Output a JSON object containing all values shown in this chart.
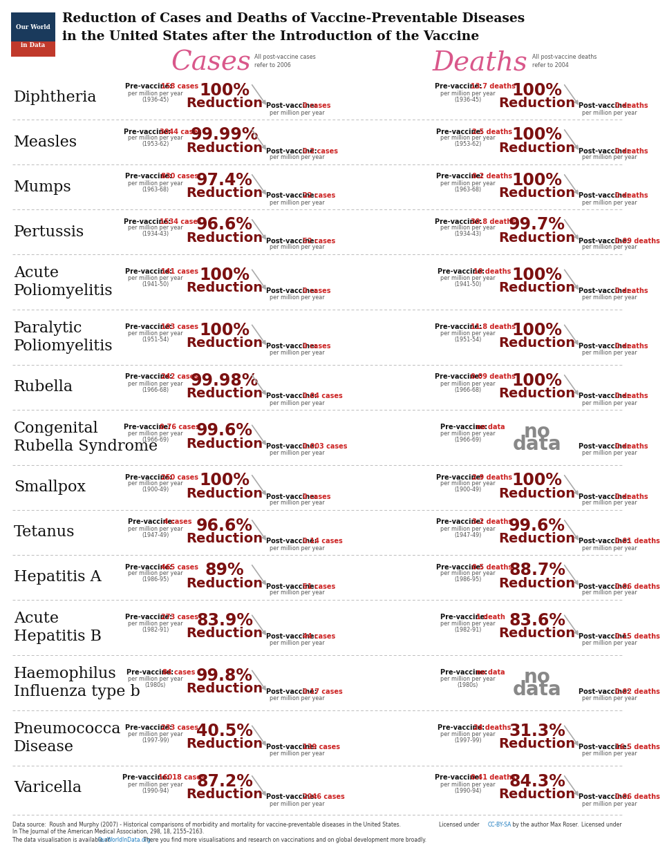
{
  "title_line1": "Reduction of Cases and Deaths of Vaccine-Preventable Diseases",
  "title_line2": "in the United States after the Introduction of the Vaccine",
  "cases_header": "Cases",
  "deaths_header": "Deaths",
  "cases_note": "All post-vaccine cases\nrefer to 2006",
  "deaths_note": "All post-vaccine deaths\nrefer to 2004",
  "logo_text1": "Our World",
  "logo_text2": "in Data",
  "diseases": [
    {
      "name": "Diphtheria",
      "name_lines": 1,
      "cases_pre_val": "158 cases",
      "cases_pre_period": "(1936-45)",
      "cases_reduction": "100%",
      "cases_post_val": "0 cases",
      "deaths_pre_val": "13.7 deaths",
      "deaths_pre_period": "(1936-45)",
      "deaths_reduction": "100%",
      "deaths_post_val": "0 deaths"
    },
    {
      "name": "Measles",
      "name_lines": 1,
      "cases_pre_val": "3044 cases",
      "cases_pre_period": "(1953-62)",
      "cases_reduction": "99.99%",
      "cases_post_val": "0.2 cases",
      "deaths_pre_val": "2.5 deaths",
      "deaths_pre_period": "(1953-62)",
      "deaths_reduction": "100%",
      "deaths_post_val": "0 deaths"
    },
    {
      "name": "Mumps",
      "name_lines": 1,
      "cases_pre_val": "830 cases",
      "cases_pre_period": "(1963-68)",
      "cases_reduction": "97.4%",
      "cases_post_val": "22 cases",
      "deaths_pre_val": "0.2 deaths",
      "deaths_pre_period": "(1963-68)",
      "deaths_reduction": "100%",
      "deaths_post_val": "0 deaths"
    },
    {
      "name": "Pertussis",
      "name_lines": 1,
      "cases_pre_val": "1534 cases",
      "cases_pre_period": "(1934-43)",
      "cases_reduction": "96.6%",
      "cases_post_val": "52 cases",
      "deaths_pre_val": "30.8 deaths",
      "deaths_pre_period": "(1934-43)",
      "deaths_reduction": "99.7%",
      "deaths_post_val": "0.09 deaths"
    },
    {
      "name": "Acute\nPoliomyelitis",
      "name_lines": 2,
      "cases_pre_val": "141 cases",
      "cases_pre_period": "(1941-50)",
      "cases_reduction": "100%",
      "cases_post_val": "0 cases",
      "deaths_pre_val": "10 deaths",
      "deaths_pre_period": "(1941-50)",
      "deaths_reduction": "100%",
      "deaths_post_val": "0 deaths"
    },
    {
      "name": "Paralytic\nPoliomyelitis",
      "name_lines": 2,
      "cases_pre_val": "103 cases",
      "cases_pre_period": "(1951-54)",
      "cases_reduction": "100%",
      "cases_post_val": "0 cases",
      "deaths_pre_val": "11.8 deaths",
      "deaths_pre_period": "(1951-54)",
      "deaths_reduction": "100%",
      "deaths_post_val": "0 deaths"
    },
    {
      "name": "Rubella",
      "name_lines": 1,
      "cases_pre_val": "242 cases",
      "cases_pre_period": "(1966-68)",
      "cases_reduction": "99.98%",
      "cases_post_val": "0.04 cases",
      "deaths_pre_val": "0.09 deaths",
      "deaths_pre_period": "(1966-68)",
      "deaths_reduction": "100%",
      "deaths_post_val": "0 deaths"
    },
    {
      "name": "Congenital\nRubella Syndrome",
      "name_lines": 2,
      "cases_pre_val": "0.76 cases",
      "cases_pre_period": "(1966-69)",
      "cases_reduction": "99.6%",
      "cases_post_val": "0.003 cases",
      "deaths_pre_val": "no data",
      "deaths_pre_period": "(1966-69)",
      "deaths_reduction": "nodata",
      "deaths_post_val": "0 deaths"
    },
    {
      "name": "Smallpox",
      "name_lines": 1,
      "cases_pre_val": "250 cases",
      "cases_pre_period": "(1900-49)",
      "cases_reduction": "100%",
      "cases_post_val": "0 cases",
      "deaths_pre_val": "2.9 deaths",
      "deaths_pre_period": "(1900-49)",
      "deaths_reduction": "100%",
      "deaths_post_val": "0 deaths"
    },
    {
      "name": "Tetanus",
      "name_lines": 1,
      "cases_pre_val": "4 cases",
      "cases_pre_period": "(1947-49)",
      "cases_reduction": "96.6%",
      "cases_post_val": "0.14 cases",
      "deaths_pre_val": "3.2 deaths",
      "deaths_pre_period": "(1947-49)",
      "deaths_reduction": "99.6%",
      "deaths_post_val": "0.01 deaths"
    },
    {
      "name": "Hepatitis A",
      "name_lines": 1,
      "cases_pre_val": "465 cases",
      "cases_pre_period": "(1986-95)",
      "cases_reduction": "89%",
      "cases_post_val": "51 cases",
      "deaths_pre_val": "0.5 deaths",
      "deaths_pre_period": "(1986-95)",
      "deaths_reduction": "88.7%",
      "deaths_post_val": "0.06 deaths"
    },
    {
      "name": "Acute\nHepatitis B",
      "name_lines": 2,
      "cases_pre_val": "273 cases",
      "cases_pre_period": "(1982-91)",
      "cases_reduction": "83.9%",
      "cases_post_val": "44 cases",
      "deaths_pre_val": "1 death",
      "deaths_pre_period": "(1982-91)",
      "deaths_reduction": "83.6%",
      "deaths_post_val": "0.15 deaths"
    },
    {
      "name": "Haemophilus\nInfluenza type b",
      "name_lines": 2,
      "cases_pre_val": "84 cases",
      "cases_pre_period": "(1980s)",
      "cases_reduction": "99.8%",
      "cases_post_val": "0.17 cases",
      "deaths_pre_val": "no data",
      "deaths_pre_period": "(1980s)",
      "deaths_reduction": "nodata",
      "deaths_post_val": "0.02 deaths"
    },
    {
      "name": "Pneumococca\nDisease",
      "name_lines": 2,
      "cases_pre_val": "233 cases",
      "cases_pre_period": "(1997-99)",
      "cases_reduction": "40.5%",
      "cases_post_val": "139 cases",
      "deaths_pre_val": "24 deaths",
      "deaths_pre_period": "(1997-99)",
      "deaths_reduction": "31.3%",
      "deaths_post_val": "16.5 deaths"
    },
    {
      "name": "Varicella",
      "name_lines": 1,
      "cases_pre_val": "16018 cases",
      "cases_pre_period": "(1990-94)",
      "cases_reduction": "87.2%",
      "cases_post_val": "2046 cases",
      "deaths_pre_val": "0.41 deaths",
      "deaths_pre_period": "(1990-94)",
      "deaths_reduction": "84.3%",
      "deaths_post_val": "0.06 deaths"
    }
  ],
  "color_bg": "#ffffff",
  "color_title": "#111111",
  "color_disease": "#111111",
  "color_reduction": "#7b1010",
  "color_pre_label": "#111111",
  "color_pre_val": "#cc2222",
  "color_post_val": "#cc2222",
  "color_cases_header": "#d9578a",
  "color_deaths_header": "#d9578a",
  "color_arrow": "#aaaaaa",
  "color_separator": "#bbbbbb",
  "color_nodata": "#888888",
  "color_small_text": "#555555",
  "footer_text1": "Data source:  Roush and Murphy (2007) - Historical comparisons of morbidity and mortality for vaccine-preventable diseases in the United States.",
  "footer_text2": "In The Journal of the American Medical Association, 298, 18, 2155–2163.",
  "footer_text3": "The data visualisation is available at OurWorldInData.org. There you find more visualisations and research on vaccinations and on global development more broadly.",
  "footer_license": "Licensed under CC-BY-SA by the author Max Roser."
}
